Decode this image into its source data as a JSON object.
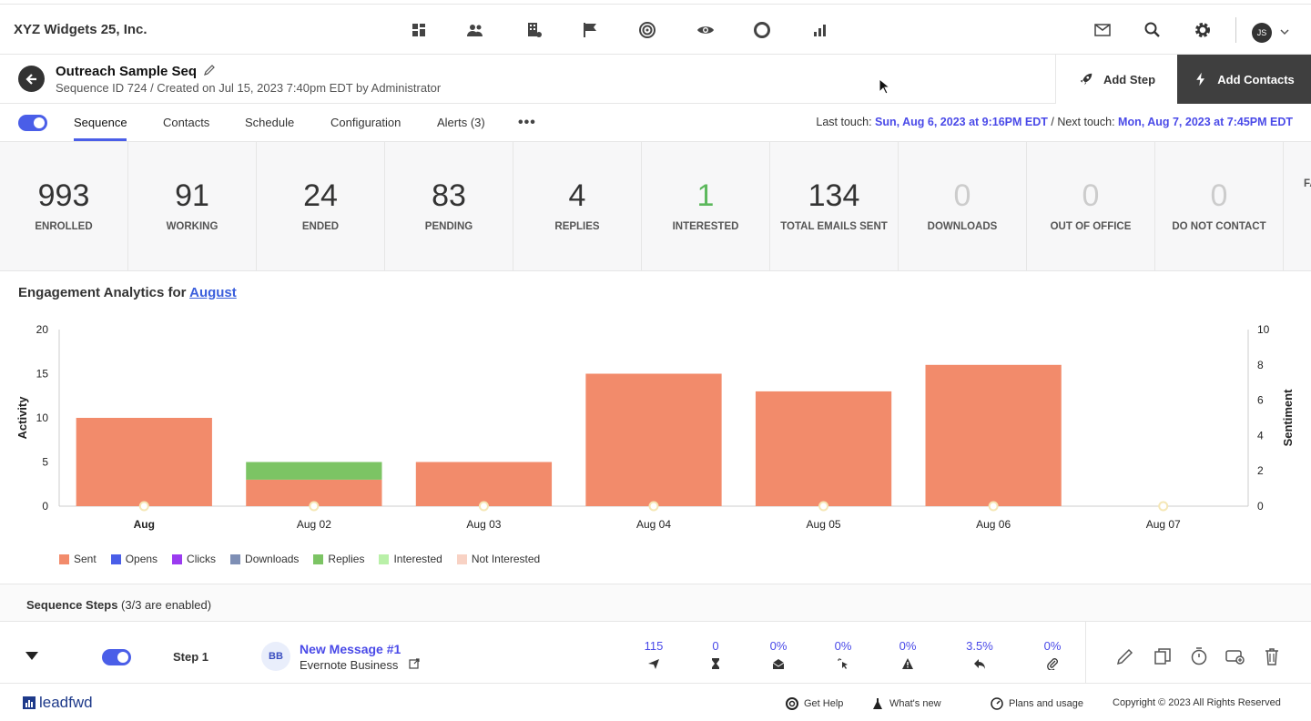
{
  "topbar": {
    "brand": "XYZ Widgets 25, Inc.",
    "nav_icons": [
      "dashboard-icon",
      "contacts-icon",
      "companies-icon",
      "campaigns-flag-icon",
      "target-icon",
      "eye-icon",
      "circle-icon",
      "reports-icon"
    ],
    "right_icons": [
      "mail-icon",
      "search-icon",
      "gear-icon"
    ],
    "avatar_initials": "JS"
  },
  "header": {
    "title": "Outreach Sample Seq",
    "subtitle": "Sequence ID 724 / Created on Jul 15, 2023 7:40pm EDT by Administrator",
    "add_step_label": "Add Step",
    "add_contacts_label": "Add Contacts"
  },
  "tabs": {
    "items": [
      "Sequence",
      "Contacts",
      "Schedule",
      "Configuration",
      "Alerts (3)"
    ],
    "active": "Sequence",
    "more": "•••",
    "last_touch_label": "Last touch:",
    "last_touch_value": "Sun, Aug 6, 2023 at 9:16PM EDT",
    "separator": " / ",
    "next_touch_label": "Next touch:",
    "next_touch_value": "Mon, Aug 7, 2023 at 7:45PM EDT"
  },
  "stats": [
    {
      "value": "993",
      "label": "ENROLLED"
    },
    {
      "value": "91",
      "label": "WORKING"
    },
    {
      "value": "24",
      "label": "ENDED"
    },
    {
      "value": "83",
      "label": "PENDING"
    },
    {
      "value": "4",
      "label": "REPLIES"
    },
    {
      "value": "1",
      "label": "INTERESTED"
    },
    {
      "value": "134",
      "label": "TOTAL EMAILS SENT"
    },
    {
      "value": "0",
      "label": "DOWNLOADS"
    },
    {
      "value": "0",
      "label": "OUT OF OFFICE"
    },
    {
      "value": "0",
      "label": "DO NOT CONTACT"
    },
    {
      "value": "",
      "label": "FA"
    }
  ],
  "analytics": {
    "title_prefix": "Engagement Analytics for",
    "month_link": "August"
  },
  "chart_data": {
    "type": "bar",
    "categories": [
      "Aug",
      "Aug 02",
      "Aug 03",
      "Aug 04",
      "Aug 05",
      "Aug 06",
      "Aug 07"
    ],
    "series": [
      {
        "name": "Sent",
        "values": [
          10,
          3,
          5,
          15,
          13,
          16,
          0
        ],
        "color": "#f28b6b"
      },
      {
        "name": "Replies",
        "values": [
          0,
          2,
          0,
          0,
          0,
          0,
          0
        ],
        "color": "#7cc464"
      },
      {
        "name": "Sentiment",
        "axis": "right",
        "values": [
          0,
          0,
          0,
          0,
          0,
          0,
          0
        ],
        "color": "#f5e7b5"
      }
    ],
    "ylabel": "Activity",
    "ylabel_right": "Sentiment",
    "ylim": [
      0,
      20
    ],
    "ylim_right": [
      0,
      10
    ],
    "yticks": [
      0,
      5,
      10,
      15,
      20
    ],
    "yticks_right": [
      0,
      2,
      4,
      6,
      8,
      10
    ],
    "legend": [
      {
        "name": "Sent",
        "color": "#f28b6b"
      },
      {
        "name": "Opens",
        "color": "#4a5ee8"
      },
      {
        "name": "Clicks",
        "color": "#9b3bf0"
      },
      {
        "name": "Downloads",
        "color": "#7e8fb5"
      },
      {
        "name": "Replies",
        "color": "#7cc464"
      },
      {
        "name": "Interested",
        "color": "#b9f0a8"
      },
      {
        "name": "Not Interested",
        "color": "#f8d2c4"
      }
    ],
    "legend_position": "bottom-left",
    "grid": false
  },
  "steps": {
    "title_bold": "Sequence Steps",
    "title_rest": " (3/3 are enabled)",
    "rows": [
      {
        "label": "Step 1",
        "avatar": "BB",
        "message_title": "New Message #1",
        "message_sub": "Evernote Business",
        "metrics": [
          {
            "value": "115",
            "icon": "send-icon"
          },
          {
            "value": "0",
            "icon": "hourglass-icon"
          },
          {
            "value": "0%",
            "icon": "open-envelope-icon"
          },
          {
            "value": "0%",
            "icon": "click-icon"
          },
          {
            "value": "0%",
            "icon": "warning-icon"
          },
          {
            "value": "3.5%",
            "icon": "reply-icon"
          },
          {
            "value": "0%",
            "icon": "attachment-icon"
          }
        ],
        "actions": [
          "edit-icon",
          "copy-icon",
          "timer-icon",
          "add-message-icon",
          "trash-icon"
        ]
      }
    ]
  },
  "footer": {
    "logo": "leadfwd",
    "help": "Get Help",
    "whats_new": "What's new",
    "plans": "Plans and usage",
    "copyright": "Copyright © 2023 All Rights Reserved"
  }
}
